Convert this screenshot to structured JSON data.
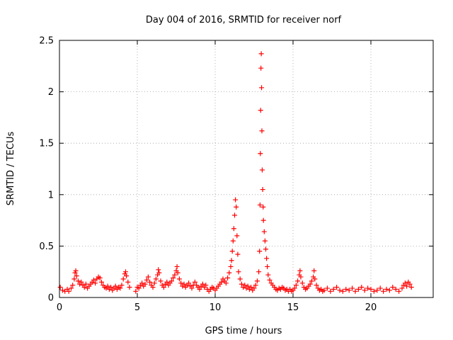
{
  "chart_data": {
    "type": "scatter",
    "title": "Day 004 of 2016, SRMTID for receiver norf",
    "xlabel": "GPS time / hours",
    "ylabel": "SRMTID / TECUs",
    "xlim": [
      0,
      24
    ],
    "ylim": [
      0,
      2.5
    ],
    "xticks": [
      0,
      5,
      10,
      15,
      20
    ],
    "xtick_labels": [
      "0",
      "5",
      "10",
      "15",
      "20"
    ],
    "yticks": [
      0,
      0.5,
      1,
      1.5,
      2,
      2.5
    ],
    "ytick_labels": [
      "0",
      "0.5",
      "1",
      "1.5",
      "2",
      "2.5"
    ],
    "grid": true,
    "marker": "+",
    "color": "#ff0000",
    "series": [
      {
        "name": "SRMTID",
        "points": [
          [
            0.05,
            0.1
          ],
          [
            0.2,
            0.07
          ],
          [
            0.35,
            0.06
          ],
          [
            0.5,
            0.08
          ],
          [
            0.6,
            0.06
          ],
          [
            0.75,
            0.09
          ],
          [
            0.85,
            0.12
          ],
          [
            0.95,
            0.18
          ],
          [
            1.0,
            0.24
          ],
          [
            1.05,
            0.26
          ],
          [
            1.1,
            0.21
          ],
          [
            1.2,
            0.16
          ],
          [
            1.3,
            0.13
          ],
          [
            1.4,
            0.15
          ],
          [
            1.5,
            0.12
          ],
          [
            1.6,
            0.1
          ],
          [
            1.7,
            0.13
          ],
          [
            1.8,
            0.09
          ],
          [
            1.9,
            0.11
          ],
          [
            2.0,
            0.13
          ],
          [
            2.1,
            0.15
          ],
          [
            2.2,
            0.17
          ],
          [
            2.3,
            0.14
          ],
          [
            2.4,
            0.18
          ],
          [
            2.5,
            0.2
          ],
          [
            2.6,
            0.19
          ],
          [
            2.7,
            0.15
          ],
          [
            2.8,
            0.12
          ],
          [
            2.9,
            0.1
          ],
          [
            3.0,
            0.09
          ],
          [
            3.1,
            0.11
          ],
          [
            3.2,
            0.08
          ],
          [
            3.3,
            0.1
          ],
          [
            3.4,
            0.07
          ],
          [
            3.5,
            0.09
          ],
          [
            3.6,
            0.11
          ],
          [
            3.7,
            0.08
          ],
          [
            3.8,
            0.1
          ],
          [
            3.9,
            0.09
          ],
          [
            4.0,
            0.12
          ],
          [
            4.1,
            0.18
          ],
          [
            4.2,
            0.23
          ],
          [
            4.25,
            0.25
          ],
          [
            4.3,
            0.21
          ],
          [
            4.4,
            0.15
          ],
          [
            4.5,
            0.1
          ],
          [
            4.9,
            0.06
          ],
          [
            5.0,
            0.1
          ],
          [
            5.1,
            0.09
          ],
          [
            5.2,
            0.12
          ],
          [
            5.3,
            0.14
          ],
          [
            5.4,
            0.11
          ],
          [
            5.5,
            0.13
          ],
          [
            5.6,
            0.17
          ],
          [
            5.7,
            0.2
          ],
          [
            5.8,
            0.15
          ],
          [
            5.9,
            0.12
          ],
          [
            6.0,
            0.1
          ],
          [
            6.1,
            0.14
          ],
          [
            6.2,
            0.18
          ],
          [
            6.3,
            0.22
          ],
          [
            6.35,
            0.27
          ],
          [
            6.4,
            0.24
          ],
          [
            6.5,
            0.16
          ],
          [
            6.6,
            0.12
          ],
          [
            6.7,
            0.1
          ],
          [
            6.8,
            0.13
          ],
          [
            6.9,
            0.15
          ],
          [
            7.0,
            0.12
          ],
          [
            7.1,
            0.14
          ],
          [
            7.2,
            0.16
          ],
          [
            7.3,
            0.19
          ],
          [
            7.4,
            0.22
          ],
          [
            7.5,
            0.26
          ],
          [
            7.55,
            0.3
          ],
          [
            7.6,
            0.24
          ],
          [
            7.7,
            0.18
          ],
          [
            7.8,
            0.14
          ],
          [
            7.9,
            0.11
          ],
          [
            8.0,
            0.13
          ],
          [
            8.1,
            0.1
          ],
          [
            8.2,
            0.12
          ],
          [
            8.3,
            0.14
          ],
          [
            8.4,
            0.11
          ],
          [
            8.5,
            0.09
          ],
          [
            8.6,
            0.12
          ],
          [
            8.7,
            0.15
          ],
          [
            8.8,
            0.12
          ],
          [
            8.9,
            0.1
          ],
          [
            9.0,
            0.08
          ],
          [
            9.1,
            0.11
          ],
          [
            9.2,
            0.13
          ],
          [
            9.3,
            0.1
          ],
          [
            9.4,
            0.12
          ],
          [
            9.5,
            0.08
          ],
          [
            9.6,
            0.06
          ],
          [
            9.7,
            0.08
          ],
          [
            9.8,
            0.1
          ],
          [
            9.9,
            0.09
          ],
          [
            10.0,
            0.07
          ],
          [
            10.1,
            0.09
          ],
          [
            10.2,
            0.11
          ],
          [
            10.3,
            0.13
          ],
          [
            10.4,
            0.15
          ],
          [
            10.5,
            0.18
          ],
          [
            10.6,
            0.16
          ],
          [
            10.7,
            0.14
          ],
          [
            10.8,
            0.19
          ],
          [
            10.9,
            0.24
          ],
          [
            11.0,
            0.3
          ],
          [
            11.05,
            0.36
          ],
          [
            11.1,
            0.45
          ],
          [
            11.15,
            0.55
          ],
          [
            11.2,
            0.67
          ],
          [
            11.25,
            0.8
          ],
          [
            11.3,
            0.95
          ],
          [
            11.35,
            0.88
          ],
          [
            11.4,
            0.6
          ],
          [
            11.45,
            0.42
          ],
          [
            11.5,
            0.25
          ],
          [
            11.6,
            0.18
          ],
          [
            11.7,
            0.13
          ],
          [
            11.8,
            0.1
          ],
          [
            11.9,
            0.12
          ],
          [
            12.0,
            0.09
          ],
          [
            12.1,
            0.11
          ],
          [
            12.2,
            0.08
          ],
          [
            12.3,
            0.1
          ],
          [
            12.4,
            0.07
          ],
          [
            12.5,
            0.09
          ],
          [
            12.6,
            0.12
          ],
          [
            12.7,
            0.16
          ],
          [
            12.8,
            0.25
          ],
          [
            12.85,
            0.45
          ],
          [
            12.88,
            0.9
          ],
          [
            12.9,
            1.4
          ],
          [
            12.92,
            1.82
          ],
          [
            12.94,
            2.23
          ],
          [
            12.96,
            2.37
          ],
          [
            12.98,
            2.04
          ],
          [
            13.0,
            1.62
          ],
          [
            13.02,
            1.24
          ],
          [
            13.05,
            1.05
          ],
          [
            13.08,
            0.88
          ],
          [
            13.1,
            0.75
          ],
          [
            13.15,
            0.64
          ],
          [
            13.2,
            0.55
          ],
          [
            13.25,
            0.47
          ],
          [
            13.3,
            0.38
          ],
          [
            13.35,
            0.3
          ],
          [
            13.4,
            0.22
          ],
          [
            13.5,
            0.17
          ],
          [
            13.6,
            0.14
          ],
          [
            13.7,
            0.12
          ],
          [
            13.8,
            0.1
          ],
          [
            13.9,
            0.08
          ],
          [
            14.0,
            0.07
          ],
          [
            14.1,
            0.09
          ],
          [
            14.2,
            0.08
          ],
          [
            14.3,
            0.1
          ],
          [
            14.4,
            0.09
          ],
          [
            14.5,
            0.07
          ],
          [
            14.6,
            0.08
          ],
          [
            14.7,
            0.06
          ],
          [
            14.8,
            0.08
          ],
          [
            14.9,
            0.06
          ],
          [
            15.0,
            0.07
          ],
          [
            15.1,
            0.09
          ],
          [
            15.2,
            0.12
          ],
          [
            15.3,
            0.16
          ],
          [
            15.4,
            0.22
          ],
          [
            15.45,
            0.26
          ],
          [
            15.5,
            0.2
          ],
          [
            15.6,
            0.14
          ],
          [
            15.7,
            0.1
          ],
          [
            15.8,
            0.08
          ],
          [
            15.9,
            0.09
          ],
          [
            16.0,
            0.11
          ],
          [
            16.1,
            0.13
          ],
          [
            16.2,
            0.16
          ],
          [
            16.3,
            0.2
          ],
          [
            16.35,
            0.26
          ],
          [
            16.4,
            0.18
          ],
          [
            16.5,
            0.12
          ],
          [
            16.6,
            0.09
          ],
          [
            16.7,
            0.07
          ],
          [
            16.8,
            0.08
          ],
          [
            16.9,
            0.06
          ],
          [
            17.0,
            0.07
          ],
          [
            17.2,
            0.09
          ],
          [
            17.4,
            0.06
          ],
          [
            17.6,
            0.08
          ],
          [
            17.8,
            0.1
          ],
          [
            18.0,
            0.07
          ],
          [
            18.2,
            0.06
          ],
          [
            18.4,
            0.08
          ],
          [
            18.6,
            0.07
          ],
          [
            18.8,
            0.09
          ],
          [
            19.0,
            0.06
          ],
          [
            19.2,
            0.08
          ],
          [
            19.4,
            0.1
          ],
          [
            19.6,
            0.07
          ],
          [
            19.8,
            0.09
          ],
          [
            20.0,
            0.08
          ],
          [
            20.2,
            0.06
          ],
          [
            20.4,
            0.07
          ],
          [
            20.6,
            0.09
          ],
          [
            20.8,
            0.06
          ],
          [
            21.0,
            0.08
          ],
          [
            21.2,
            0.07
          ],
          [
            21.4,
            0.1
          ],
          [
            21.6,
            0.08
          ],
          [
            21.8,
            0.06
          ],
          [
            22.0,
            0.09
          ],
          [
            22.1,
            0.12
          ],
          [
            22.2,
            0.14
          ],
          [
            22.3,
            0.11
          ],
          [
            22.4,
            0.15
          ],
          [
            22.5,
            0.13
          ],
          [
            22.6,
            0.1
          ]
        ]
      }
    ]
  }
}
